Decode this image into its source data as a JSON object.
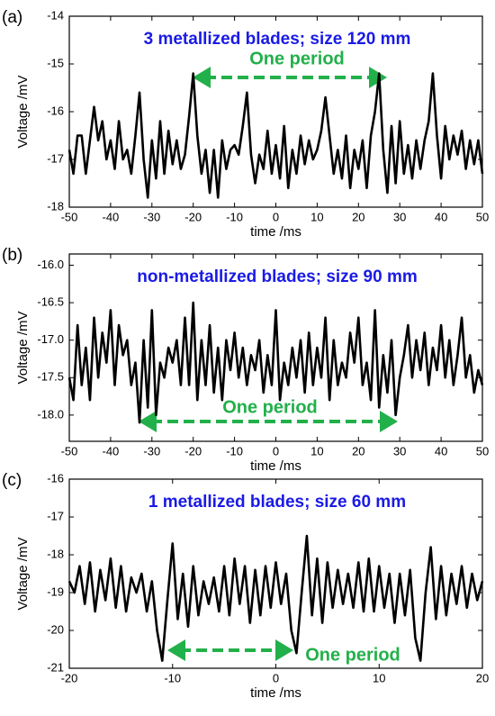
{
  "chart_data": [
    {
      "type": "line",
      "panel_label": "(a)",
      "title": "3 metallized blades; size 120 mm",
      "annotation": "One period",
      "xlabel": "time /ms",
      "ylabel": "Voltage /mV",
      "color": "#000000",
      "x": [
        -50,
        -49,
        -48,
        -47,
        -46,
        -45,
        -44,
        -43,
        -42,
        -41,
        -40,
        -39,
        -38,
        -37,
        -36,
        -35,
        -34,
        -33,
        -32,
        -31,
        -30,
        -29,
        -28,
        -27,
        -26,
        -25,
        -24,
        -23,
        -22,
        -21,
        -20,
        -19,
        -18,
        -17,
        -16,
        -15,
        -14,
        -13,
        -12,
        -11,
        -10,
        -9,
        -8,
        -7,
        -6,
        -5,
        -4,
        -3,
        -2,
        -1,
        0,
        1,
        2,
        3,
        4,
        5,
        6,
        7,
        8,
        9,
        10,
        11,
        12,
        13,
        14,
        15,
        16,
        17,
        18,
        19,
        20,
        21,
        22,
        23,
        24,
        25,
        26,
        27,
        28,
        29,
        30,
        31,
        32,
        33,
        34,
        35,
        36,
        37,
        38,
        39,
        40,
        41,
        42,
        43,
        44,
        45,
        46,
        47,
        48,
        49,
        50
      ],
      "values": [
        -16.8,
        -17.3,
        -16.5,
        -16.5,
        -17.3,
        -16.6,
        -15.9,
        -16.6,
        -16.2,
        -17.0,
        -16.6,
        -17.2,
        -16.2,
        -17.0,
        -16.8,
        -17.3,
        -16.5,
        -15.6,
        -17.0,
        -17.8,
        -16.6,
        -17.4,
        -16.2,
        -17.3,
        -16.4,
        -17.1,
        -16.6,
        -17.2,
        -16.9,
        -16.1,
        -15.2,
        -16.5,
        -17.3,
        -16.8,
        -17.7,
        -16.8,
        -17.8,
        -16.6,
        -17.2,
        -16.8,
        -16.7,
        -16.9,
        -16.3,
        -15.6,
        -16.9,
        -17.5,
        -16.9,
        -17.2,
        -16.4,
        -17.3,
        -16.7,
        -17.4,
        -16.3,
        -17.6,
        -16.8,
        -17.3,
        -16.5,
        -17.1,
        -16.6,
        -17.0,
        -16.8,
        -16.4,
        -15.7,
        -16.5,
        -17.3,
        -16.8,
        -17.4,
        -16.5,
        -17.6,
        -16.8,
        -17.2,
        -16.6,
        -17.6,
        -16.5,
        -16.0,
        -15.2,
        -16.8,
        -17.7,
        -16.3,
        -17.5,
        -16.2,
        -17.3,
        -16.7,
        -17.4,
        -16.6,
        -17.2,
        -16.6,
        -16.2,
        -15.2,
        -16.5,
        -17.4,
        -16.3,
        -17.0,
        -16.5,
        -16.9,
        -16.4,
        -17.2,
        -16.6,
        -17.1,
        -16.6,
        -17.3
      ],
      "xlim": [
        -50,
        50
      ],
      "xticks": [
        -50,
        -40,
        -30,
        -20,
        -10,
        0,
        10,
        20,
        30,
        40,
        50
      ],
      "ylim": [
        -18,
        -14
      ],
      "yticks": [
        -18,
        -17,
        -16,
        -15,
        -14
      ]
    },
    {
      "type": "line",
      "panel_label": "(b)",
      "title": "non-metallized blades; size 90 mm",
      "annotation": "One period",
      "xlabel": "time /ms",
      "ylabel": "Voltage /mV",
      "color": "#000000",
      "x": [
        -50,
        -49,
        -48,
        -47,
        -46,
        -45,
        -44,
        -43,
        -42,
        -41,
        -40,
        -39,
        -38,
        -37,
        -36,
        -35,
        -34,
        -33,
        -32,
        -31,
        -30,
        -29,
        -28,
        -27,
        -26,
        -25,
        -24,
        -23,
        -22,
        -21,
        -20,
        -19,
        -18,
        -17,
        -16,
        -15,
        -14,
        -13,
        -12,
        -11,
        -10,
        -9,
        -8,
        -7,
        -6,
        -5,
        -4,
        -3,
        -2,
        -1,
        0,
        1,
        2,
        3,
        4,
        5,
        6,
        7,
        8,
        9,
        10,
        11,
        12,
        13,
        14,
        15,
        16,
        17,
        18,
        19,
        20,
        21,
        22,
        23,
        24,
        25,
        26,
        27,
        28,
        29,
        30,
        31,
        32,
        33,
        34,
        35,
        36,
        37,
        38,
        39,
        40,
        41,
        42,
        43,
        44,
        45,
        46,
        47,
        48,
        49,
        50
      ],
      "values": [
        -17.5,
        -17.8,
        -16.8,
        -17.6,
        -17.1,
        -17.8,
        -16.7,
        -17.5,
        -16.9,
        -17.3,
        -16.6,
        -17.6,
        -16.8,
        -17.2,
        -17.0,
        -17.6,
        -17.3,
        -18.1,
        -17.0,
        -17.9,
        -16.6,
        -18.0,
        -17.3,
        -17.5,
        -17.1,
        -17.3,
        -17.0,
        -17.6,
        -16.7,
        -17.6,
        -16.5,
        -17.8,
        -17.0,
        -17.6,
        -16.8,
        -17.7,
        -17.1,
        -17.8,
        -17.0,
        -17.4,
        -16.9,
        -17.5,
        -17.1,
        -17.6,
        -17.2,
        -17.4,
        -17.0,
        -17.7,
        -17.2,
        -17.6,
        -16.6,
        -17.8,
        -17.3,
        -17.6,
        -17.1,
        -17.5,
        -17.0,
        -17.7,
        -16.9,
        -17.6,
        -17.1,
        -17.5,
        -16.7,
        -17.8,
        -17.0,
        -17.6,
        -17.3,
        -17.5,
        -16.9,
        -17.3,
        -16.7,
        -17.6,
        -17.3,
        -17.8,
        -16.6,
        -17.9,
        -17.2,
        -17.7,
        -17.0,
        -18.0,
        -17.5,
        -17.2,
        -16.8,
        -17.5,
        -17.0,
        -17.4,
        -16.9,
        -17.6,
        -17.1,
        -17.4,
        -16.8,
        -17.5,
        -17.0,
        -17.6,
        -17.2,
        -16.7,
        -17.5,
        -17.2,
        -17.7,
        -17.4,
        -17.6
      ],
      "xlim": [
        -50,
        50
      ],
      "xticks": [
        -50,
        -40,
        -30,
        -20,
        -10,
        0,
        10,
        20,
        30,
        40,
        50
      ],
      "ylim": [
        -18.35,
        -15.85
      ],
      "yticks": [
        {
          "value": -18,
          "label": "-18.0"
        },
        -17.5,
        {
          "value": -17,
          "label": "-17.0"
        },
        -16.5,
        {
          "value": -16,
          "label": "-16.0"
        }
      ]
    },
    {
      "type": "line",
      "panel_label": "(c)",
      "title": "1 metallized blades; size 60 mm",
      "annotation": "One period",
      "xlabel": "time /ms",
      "ylabel": "Voltage /mV",
      "color": "#000000",
      "x": [
        -20,
        -19.5,
        -19,
        -18.5,
        -18,
        -17.5,
        -17,
        -16.5,
        -16,
        -15.5,
        -15,
        -14.5,
        -14,
        -13.5,
        -13,
        -12.5,
        -12,
        -11.5,
        -11,
        -10.5,
        -10,
        -9.5,
        -9,
        -8.5,
        -8,
        -7.5,
        -7,
        -6.5,
        -6,
        -5.5,
        -5,
        -4.5,
        -4,
        -3.5,
        -3,
        -2.5,
        -2,
        -1.5,
        -1,
        -0.5,
        0,
        0.5,
        1,
        1.5,
        2,
        2.5,
        3,
        3.5,
        4,
        4.5,
        5,
        5.5,
        6,
        6.5,
        7,
        7.5,
        8,
        8.5,
        9,
        9.5,
        10,
        10.5,
        11,
        11.5,
        12,
        12.5,
        13,
        13.5,
        14,
        14.5,
        15,
        15.5,
        16,
        16.5,
        17,
        17.5,
        18,
        18.5,
        19,
        19.5,
        20
      ],
      "values": [
        -18.7,
        -19.0,
        -18.3,
        -19.3,
        -18.2,
        -19.5,
        -18.4,
        -19.2,
        -18.1,
        -19.4,
        -18.3,
        -19.5,
        -18.6,
        -19.0,
        -18.5,
        -19.5,
        -18.7,
        -20.0,
        -20.8,
        -19.2,
        -17.7,
        -19.7,
        -18.5,
        -19.9,
        -18.3,
        -19.6,
        -18.7,
        -19.3,
        -18.6,
        -19.5,
        -18.3,
        -19.6,
        -18.1,
        -19.3,
        -18.3,
        -19.8,
        -18.4,
        -19.6,
        -18.3,
        -19.4,
        -18.2,
        -19.3,
        -18.5,
        -20.0,
        -20.6,
        -19.0,
        -17.5,
        -19.6,
        -18.1,
        -19.8,
        -18.2,
        -19.4,
        -18.4,
        -19.3,
        -18.5,
        -19.4,
        -18.2,
        -19.5,
        -18.1,
        -19.5,
        -18.3,
        -19.4,
        -18.5,
        -19.8,
        -18.5,
        -19.6,
        -18.4,
        -20.2,
        -20.8,
        -19.0,
        -17.8,
        -19.7,
        -18.3,
        -19.6,
        -18.5,
        -19.3,
        -18.3,
        -19.4,
        -18.5,
        -19.2,
        -18.7
      ],
      "xlim": [
        -20,
        20
      ],
      "xticks": [
        -20,
        -10,
        0,
        10,
        20
      ],
      "ylim": [
        -21,
        -16
      ],
      "yticks": [
        -21,
        -20,
        -19,
        -18,
        -17,
        -16
      ]
    }
  ]
}
